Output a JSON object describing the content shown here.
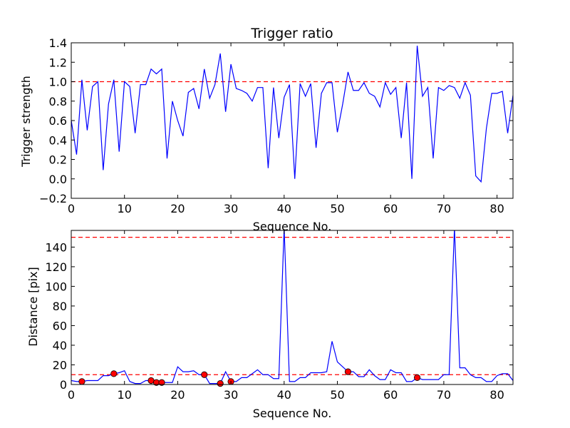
{
  "chart_data": [
    {
      "type": "line",
      "title": "Trigger ratio",
      "xlabel": "Sequence No.",
      "ylabel": "Trigger strength",
      "xlim": [
        0,
        83
      ],
      "ylim": [
        -0.2,
        1.4
      ],
      "xticks": [
        "0",
        "10",
        "20",
        "30",
        "40",
        "50",
        "60",
        "70",
        "80"
      ],
      "yticks": [
        "−0.2",
        "0.0",
        "0.2",
        "0.4",
        "0.6",
        "0.8",
        "1.0",
        "1.2",
        "1.4"
      ],
      "grid": false,
      "line_color": "#0000ff",
      "threshold": {
        "y": 1.0,
        "color": "#ff0000",
        "style": "dashed"
      },
      "series": [
        {
          "x": [
            0,
            1,
            2,
            3,
            4,
            5,
            6,
            7,
            8,
            9,
            10,
            11,
            12,
            13,
            14,
            15,
            16,
            17,
            18,
            19,
            20,
            21,
            22,
            23,
            24,
            25,
            26,
            27,
            28,
            29,
            30,
            31,
            32,
            33,
            34,
            35,
            36,
            37,
            38,
            39,
            40,
            41,
            42,
            43,
            44,
            45,
            46,
            47,
            48,
            49,
            50,
            51,
            52,
            53,
            54,
            55,
            56,
            57,
            58,
            59,
            60,
            61,
            62,
            63,
            64,
            65,
            66,
            67,
            68,
            69,
            70,
            71,
            72,
            73,
            74,
            75,
            76,
            77,
            78,
            79,
            80,
            81,
            82,
            83
          ],
          "values": [
            0.6,
            0.25,
            1.02,
            0.5,
            0.95,
            1.0,
            0.09,
            0.77,
            1.02,
            0.28,
            1.0,
            0.95,
            0.47,
            0.97,
            0.97,
            1.13,
            1.08,
            1.13,
            0.21,
            0.8,
            0.6,
            0.44,
            0.89,
            0.93,
            0.72,
            1.13,
            0.83,
            0.97,
            1.29,
            0.69,
            1.18,
            0.93,
            0.91,
            0.88,
            0.8,
            0.94,
            0.94,
            0.11,
            0.94,
            0.42,
            0.84,
            0.97,
            0.0,
            0.98,
            0.85,
            0.98,
            0.32,
            0.88,
            0.99,
            0.99,
            0.48,
            0.77,
            1.1,
            0.91,
            0.91,
            0.99,
            0.88,
            0.85,
            0.74,
            0.99,
            0.87,
            0.94,
            0.42,
            0.99,
            0.0,
            1.37,
            0.85,
            0.94,
            0.21,
            0.94,
            0.91,
            0.96,
            0.94,
            0.83,
            0.99,
            0.86,
            0.03,
            -0.03,
            0.52,
            0.88,
            0.88,
            0.9,
            0.47,
            0.86
          ]
        }
      ]
    },
    {
      "type": "line",
      "title": "",
      "xlabel": "Sequence No.",
      "ylabel": "Distance [pix]",
      "xlim": [
        0,
        83
      ],
      "ylim": [
        0,
        157
      ],
      "xticks": [
        "0",
        "10",
        "20",
        "30",
        "40",
        "50",
        "60",
        "70",
        "80"
      ],
      "yticks": [
        "0",
        "20",
        "40",
        "60",
        "80",
        "100",
        "120",
        "140"
      ],
      "grid": false,
      "line_color": "#0000ff",
      "thresholds": [
        {
          "y": 10,
          "color": "#ff0000",
          "style": "dashed"
        },
        {
          "y": 150,
          "color": "#ff0000",
          "style": "dashed"
        }
      ],
      "series": [
        {
          "x": [
            0,
            1,
            2,
            3,
            4,
            5,
            6,
            7,
            8,
            9,
            10,
            11,
            12,
            13,
            14,
            15,
            16,
            17,
            18,
            19,
            20,
            21,
            22,
            23,
            24,
            25,
            26,
            27,
            28,
            29,
            30,
            31,
            32,
            33,
            34,
            35,
            36,
            37,
            38,
            39,
            40,
            41,
            42,
            43,
            44,
            45,
            46,
            47,
            48,
            49,
            50,
            51,
            52,
            53,
            54,
            55,
            56,
            57,
            58,
            59,
            60,
            61,
            62,
            63,
            64,
            65,
            66,
            67,
            68,
            69,
            70,
            71,
            72,
            73,
            74,
            75,
            76,
            77,
            78,
            79,
            80,
            81,
            82,
            83
          ],
          "values": [
            4,
            3,
            3,
            4,
            4,
            4,
            9,
            9,
            11,
            12,
            14,
            3,
            1,
            1,
            4,
            4,
            2,
            2,
            2,
            2,
            18,
            13,
            13,
            14,
            10,
            10,
            1,
            1,
            1,
            13,
            3,
            3,
            7,
            7,
            11,
            15,
            10,
            10,
            6,
            6,
            160,
            3,
            3,
            7,
            7,
            12,
            12,
            12,
            13,
            44,
            23,
            18,
            13,
            13,
            8,
            8,
            15,
            9,
            5,
            5,
            15,
            12,
            12,
            3,
            3,
            7,
            5,
            5,
            5,
            5,
            10,
            10,
            160,
            17,
            17,
            10,
            7,
            7,
            3,
            3,
            9,
            11,
            11,
            4
          ]
        }
      ],
      "markers": {
        "color": "#ff0000",
        "points": [
          {
            "x": 2,
            "y": 3
          },
          {
            "x": 8,
            "y": 11
          },
          {
            "x": 15,
            "y": 4
          },
          {
            "x": 16,
            "y": 2
          },
          {
            "x": 17,
            "y": 2
          },
          {
            "x": 25,
            "y": 10
          },
          {
            "x": 28,
            "y": 1
          },
          {
            "x": 30,
            "y": 3
          },
          {
            "x": 52,
            "y": 13
          },
          {
            "x": 65,
            "y": 7
          }
        ]
      }
    }
  ]
}
